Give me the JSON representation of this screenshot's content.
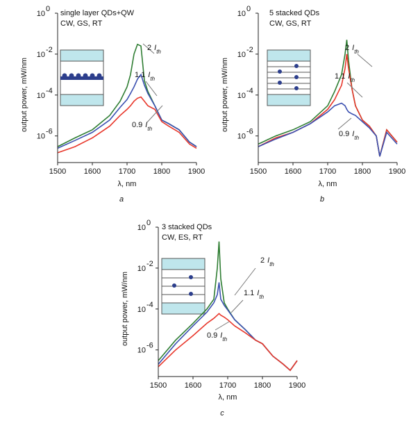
{
  "chart_data": [
    {
      "type": "line",
      "label": "a",
      "inset_text": [
        "single layer QDs+QW",
        "CW, GS, RT"
      ],
      "xlabel": "λ, nm",
      "ylabel": "output power, mW/nm",
      "log_y": true,
      "xlim": [
        1500,
        1900
      ],
      "xticks": [
        1500,
        1600,
        1700,
        1800,
        1900
      ],
      "ylim": [
        5e-08,
        1
      ],
      "yticks": [
        {
          "value": 1,
          "base": "10",
          "exponent": "0"
        },
        {
          "value": 0.01,
          "base": "10",
          "exponent": "-2"
        },
        {
          "value": 0.0001,
          "base": "10",
          "exponent": "-4"
        },
        {
          "value": 1e-06,
          "base": "10",
          "exponent": "-6"
        }
      ],
      "x": [
        1500,
        1550,
        1600,
        1650,
        1680,
        1700,
        1710,
        1720,
        1730,
        1740,
        1750,
        1760,
        1780,
        1800,
        1820,
        1850,
        1880,
        1900
      ],
      "series": [
        {
          "color": "#2e7d32",
          "label": {
            "coef": "2",
            "symbol": "I",
            "subscript": "th"
          },
          "values": [
            3e-07,
            8e-07,
            2e-06,
            1e-05,
            5e-05,
            0.00025,
            0.001,
            0.01,
            0.03,
            0.025,
            0.0005,
            0.00015,
            3e-05,
            6e-06,
            4e-06,
            2e-06,
            5e-07,
            3e-07
          ]
        },
        {
          "color": "#3a4fb0",
          "label": {
            "coef": "1.1",
            "symbol": "I",
            "subscript": "th"
          },
          "values": [
            2.5e-07,
            6e-07,
            1.5e-06,
            6e-06,
            2.5e-05,
            6e-05,
            0.00012,
            0.00025,
            0.0006,
            0.001,
            0.0003,
            0.00012,
            3e-05,
            6e-06,
            4e-06,
            2e-06,
            5e-07,
            3e-07
          ]
        },
        {
          "color": "#e8362a",
          "label": {
            "coef": "0.9",
            "symbol": "I",
            "subscript": "th"
          },
          "values": [
            1.5e-07,
            3e-07,
            8e-07,
            3e-06,
            1e-05,
            2e-05,
            3e-05,
            5e-05,
            7e-05,
            8e-05,
            5e-05,
            3e-05,
            2e-05,
            5e-06,
            3e-06,
            1.5e-06,
            4e-07,
            2.5e-07
          ]
        }
      ]
    },
    {
      "type": "line",
      "label": "b",
      "inset_text": [
        "5 stacked QDs",
        "CW, GS, RT"
      ],
      "xlabel": "λ, nm",
      "ylabel": "output power, mW/nm",
      "log_y": true,
      "xlim": [
        1500,
        1900
      ],
      "xticks": [
        1500,
        1600,
        1700,
        1800,
        1900
      ],
      "ylim": [
        5e-08,
        1
      ],
      "yticks": [
        {
          "value": 1,
          "base": "10",
          "exponent": "0"
        },
        {
          "value": 0.01,
          "base": "10",
          "exponent": "-2"
        },
        {
          "value": 0.0001,
          "base": "10",
          "exponent": "-4"
        },
        {
          "value": 1e-06,
          "base": "10",
          "exponent": "-6"
        }
      ],
      "x": [
        1500,
        1550,
        1600,
        1650,
        1700,
        1720,
        1740,
        1750,
        1755,
        1760,
        1770,
        1780,
        1800,
        1820,
        1840,
        1850,
        1870,
        1900
      ],
      "series": [
        {
          "color": "#2e7d32",
          "label": {
            "coef": "2",
            "symbol": "I",
            "subscript": "th"
          },
          "values": [
            4e-07,
            1e-06,
            2e-06,
            5e-06,
            3e-05,
            0.00015,
            0.001,
            0.01,
            0.05,
            0.005,
            0.0002,
            3e-05,
            6e-06,
            3e-06,
            1e-06,
            1e-07,
            2e-06,
            5e-07
          ]
        },
        {
          "color": "#e8362a",
          "label": {
            "coef": "1.1",
            "symbol": "I",
            "subscript": "th"
          },
          "values": [
            3e-07,
            8e-07,
            1.5e-06,
            4e-06,
            2e-05,
            6e-05,
            0.0003,
            0.002,
            0.01,
            0.002,
            0.0002,
            3e-05,
            6e-06,
            3e-06,
            1e-06,
            1e-07,
            2e-06,
            5e-07
          ]
        },
        {
          "color": "#3a4fb0",
          "label": {
            "coef": "0.9",
            "symbol": "I",
            "subscript": "th"
          },
          "values": [
            3e-07,
            7e-07,
            1.5e-06,
            4e-06,
            1.5e-05,
            3e-05,
            4e-05,
            3e-05,
            2e-05,
            1.5e-05,
            1.2e-05,
            1e-05,
            5e-06,
            2.5e-06,
            1e-06,
            1e-07,
            1.5e-06,
            4e-07
          ]
        }
      ]
    },
    {
      "type": "line",
      "label": "c",
      "inset_text": [
        "3 stacked QDs",
        "CW, ES, RT"
      ],
      "xlabel": "λ, nm",
      "ylabel": "output power, mW/nm",
      "log_y": true,
      "xlim": [
        1500,
        1900
      ],
      "xticks": [
        1500,
        1600,
        1700,
        1800,
        1900
      ],
      "ylim": [
        5e-08,
        1
      ],
      "yticks": [
        {
          "value": 1,
          "base": "10",
          "exponent": "0"
        },
        {
          "value": 0.01,
          "base": "10",
          "exponent": "-2"
        },
        {
          "value": 0.0001,
          "base": "10",
          "exponent": "-4"
        },
        {
          "value": 1e-06,
          "base": "10",
          "exponent": "-6"
        }
      ],
      "x": [
        1500,
        1550,
        1600,
        1640,
        1660,
        1670,
        1675,
        1680,
        1690,
        1700,
        1720,
        1750,
        1780,
        1800,
        1830,
        1860,
        1880,
        1900
      ],
      "series": [
        {
          "color": "#2e7d32",
          "label": {
            "coef": "2",
            "symbol": "I",
            "subscript": "th"
          },
          "values": [
            3e-07,
            3e-06,
            2e-05,
            0.0001,
            0.0003,
            0.01,
            0.2,
            0.003,
            0.0002,
            0.0001,
            3e-05,
            1e-05,
            3e-06,
            2e-06,
            5e-07,
            2e-07,
            1e-07,
            3e-07
          ]
        },
        {
          "color": "#3a4fb0",
          "label": {
            "coef": "1.1",
            "symbol": "I",
            "subscript": "th"
          },
          "values": [
            2e-07,
            2e-06,
            1.5e-05,
            7e-05,
            0.0002,
            0.0005,
            0.002,
            0.0003,
            0.00015,
            9e-05,
            3e-05,
            1e-05,
            3e-06,
            2e-06,
            5e-07,
            2e-07,
            1e-07,
            3e-07
          ]
        },
        {
          "color": "#e8362a",
          "label": {
            "coef": "0.9",
            "symbol": "I",
            "subscript": "th"
          },
          "values": [
            1.5e-07,
            1e-06,
            5e-06,
            2e-05,
            3.5e-05,
            5e-05,
            6e-05,
            5e-05,
            4e-05,
            3e-05,
            1.5e-05,
            7e-06,
            3e-06,
            2e-06,
            5e-07,
            2e-07,
            1e-07,
            3e-07
          ]
        }
      ]
    }
  ]
}
